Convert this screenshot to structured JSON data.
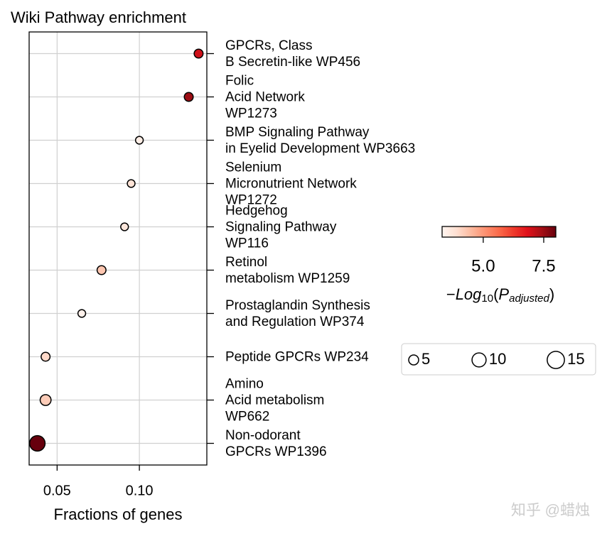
{
  "chart_data": {
    "type": "dot",
    "title": "Wiki Pathway enrichment",
    "x_label": "Fractions of genes",
    "categories": [
      "GPCRs, Class\nB Secretin-like WP456",
      "Folic\nAcid Network\nWP1273",
      "BMP Signaling Pathway\nin Eyelid Development WP3663",
      "Selenium\nMicronutrient Network\nWP1272",
      "Hedgehog\nSignaling Pathway\nWP116",
      "Retinol\nmetabolism WP1259",
      "Prostaglandin Synthesis\nand Regulation WP374",
      "Peptide GPCRs WP234",
      "Amino\nAcid metabolism\nWP662",
      "Non-odorant\nGPCRs WP1396"
    ],
    "values": [
      0.136,
      0.13,
      0.1,
      0.095,
      0.091,
      0.077,
      0.065,
      0.043,
      0.043,
      0.038
    ],
    "sizes": [
      4,
      4,
      3,
      3,
      3,
      4,
      3,
      4,
      6,
      12
    ],
    "color_values": [
      7.0,
      7.5,
      3.5,
      3.8,
      3.7,
      4.3,
      3.4,
      4.0,
      4.2,
      8.0
    ],
    "xlim": [
      0.033,
      0.141
    ],
    "xticks": [
      {
        "value": 0.05,
        "label": "0.05"
      },
      {
        "value": 0.1,
        "label": "0.10"
      }
    ],
    "grid": true,
    "colormap": "Reds",
    "clim": [
      3.3,
      8.0
    ],
    "cticks": [
      {
        "value": 5,
        "label": "5.0"
      },
      7.5
    ],
    "colorbar_label": [
      "−",
      "Log",
      "10",
      "(",
      "P",
      "adjusted",
      ")"
    ],
    "size_legend": [
      5,
      10,
      15
    ],
    "watermark": "知乎 @蜡烛"
  }
}
